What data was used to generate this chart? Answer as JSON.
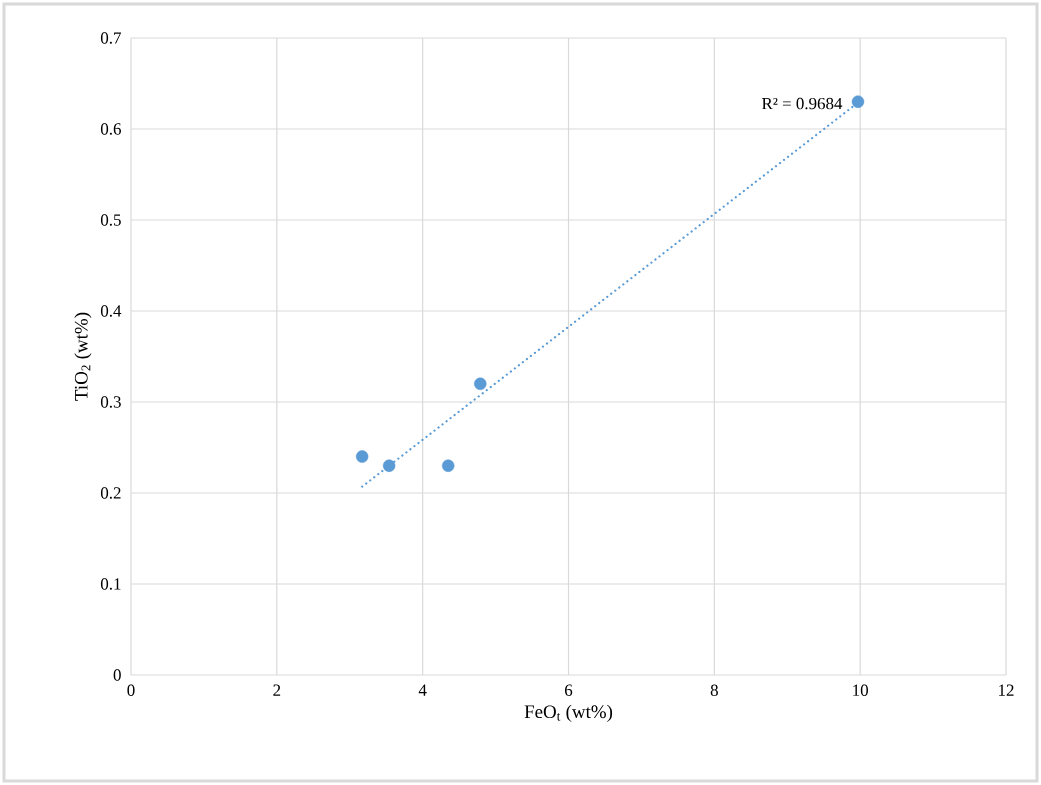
{
  "chart_data": {
    "type": "scatter",
    "xlabel": "FeO$_{t}$ (wt%)",
    "ylabel": "TiO$_{2}$ (wt%)",
    "xlim": [
      0,
      12
    ],
    "ylim": [
      0,
      0.7
    ],
    "xticks": [
      0,
      2,
      4,
      6,
      8,
      10,
      12
    ],
    "yticks": [
      0,
      0.1,
      0.2,
      0.3,
      0.4,
      0.5,
      0.6,
      0.7
    ],
    "grid": true,
    "series": [
      {
        "marker": "circle",
        "color": "#5b9bd5",
        "x": [
          3.17,
          3.54,
          4.35,
          4.79,
          9.97
        ],
        "values": [
          0.24,
          0.23,
          0.23,
          0.32,
          0.63
        ]
      },
      {
        "type": "line",
        "color": "#5b9bd5",
        "line_style": "dotted",
        "x": [
          3.17,
          9.97
        ],
        "values": [
          0.207,
          0.629
        ]
      }
    ],
    "annotations": [
      {
        "text": "R² = 0.9684",
        "x": 9.97,
        "y": 0.629
      }
    ]
  }
}
